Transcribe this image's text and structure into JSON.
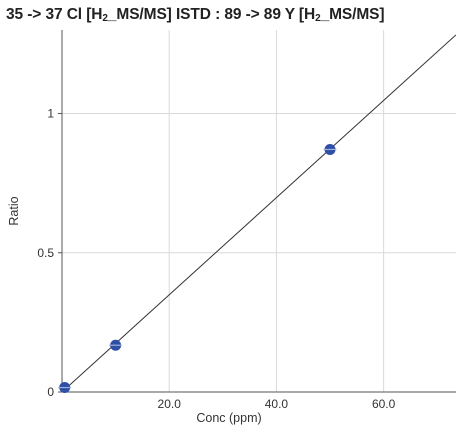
{
  "title": {
    "analyte": "35 -> 37 Cl [H",
    "analyte_sub": "2",
    "analyte_tail": "_MS/MS]",
    "istd": " ISTD : 89 -> 89 Y [H",
    "istd_sub": "2",
    "istd_tail": "_MS/MS]"
  },
  "chart_data": {
    "type": "scatter",
    "title": "35 -> 37 Cl [H2_MS/MS] ISTD : 89 -> 89 Y [H2_MS/MS]",
    "xlabel": "Conc (ppm)",
    "ylabel": "Ratio",
    "xlim": [
      0,
      73.5
    ],
    "ylim": [
      0,
      1.3
    ],
    "x_ticks": [
      20,
      40,
      60
    ],
    "x_tick_labels": [
      "20.0",
      "40.0",
      "60.0"
    ],
    "y_ticks": [
      0,
      0.5,
      1
    ],
    "y_tick_labels": [
      "0",
      "0.5",
      "1"
    ],
    "grid": true,
    "points": [
      {
        "x": 0.5,
        "y": 0.016
      },
      {
        "x": 10,
        "y": 0.168
      },
      {
        "x": 50,
        "y": 0.871
      }
    ],
    "fit_line": {
      "slope": 0.01745,
      "intercept": 0.0
    },
    "colors": {
      "points": "#2e4fa6",
      "line": "#333333",
      "grid": "#d9d9d9",
      "axis": "#555555"
    }
  }
}
